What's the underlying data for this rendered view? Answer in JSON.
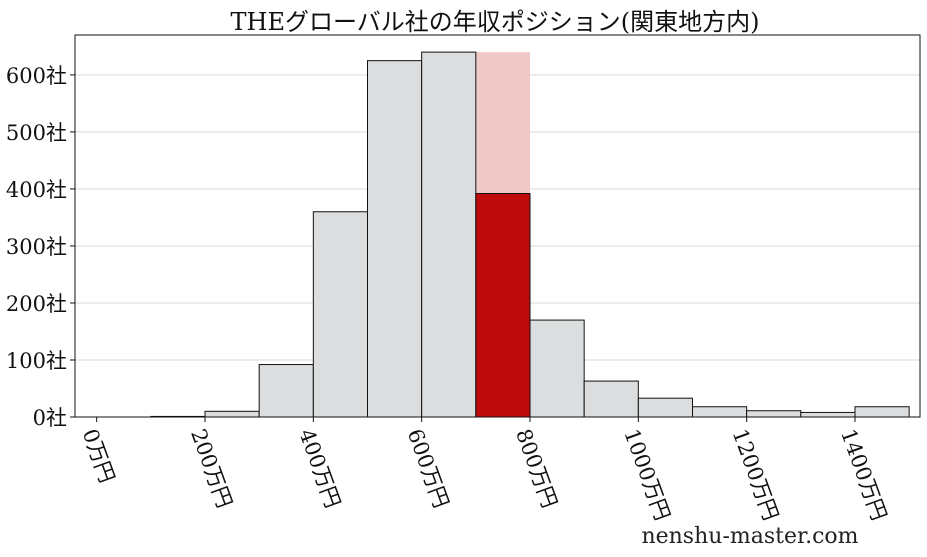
{
  "chart_data": {
    "type": "bar",
    "title": "THEグローバル社の年収ポジション(関東地方内)",
    "xlabel": "",
    "ylabel": "",
    "bin_width": 50,
    "bins": [
      {
        "start": 50,
        "count": 1
      },
      {
        "start": 100,
        "count": 10
      },
      {
        "start": 150,
        "count": 92
      },
      {
        "start": 200,
        "count": 360
      },
      {
        "start": 250,
        "count": 625
      },
      {
        "start": 300,
        "count": 640
      },
      {
        "start": 350,
        "count": 392
      },
      {
        "start": 400,
        "count": 170
      },
      {
        "start": 450,
        "count": 63
      },
      {
        "start": 500,
        "count": 33
      },
      {
        "start": 550,
        "count": 18
      },
      {
        "start": 600,
        "count": 11
      },
      {
        "start": 650,
        "count": 8
      },
      {
        "start": 700,
        "count": 18
      }
    ],
    "highlight": {
      "start": 350,
      "count": 392,
      "band_top": 640
    },
    "xlim": [
      -20,
      760
    ],
    "ylim": [
      0,
      670
    ],
    "x_ticks": [
      {
        "value": 0,
        "label": "0万円"
      },
      {
        "value": 100,
        "label": "200万円"
      },
      {
        "value": 200,
        "label": "400万円"
      },
      {
        "value": 300,
        "label": "600万円"
      },
      {
        "value": 400,
        "label": "800万円"
      },
      {
        "value": 500,
        "label": "1000万円"
      },
      {
        "value": 600,
        "label": "1200万円"
      },
      {
        "value": 700,
        "label": "1400万円"
      }
    ],
    "y_ticks": [
      {
        "value": 0,
        "label": "0社"
      },
      {
        "value": 100,
        "label": "100社"
      },
      {
        "value": 200,
        "label": "200社"
      },
      {
        "value": 300,
        "label": "300社"
      },
      {
        "value": 400,
        "label": "400社"
      },
      {
        "value": 500,
        "label": "500社"
      },
      {
        "value": 600,
        "label": "600社"
      }
    ],
    "grid": true,
    "colors": {
      "bar_fill": "#dcdddf",
      "bar_stroke": "#111111",
      "highlight_fill": "#bf0b0b",
      "band_fill": "#f0c8c8",
      "grid": "#d9d9d9"
    }
  },
  "watermark": "nenshu-master.com"
}
